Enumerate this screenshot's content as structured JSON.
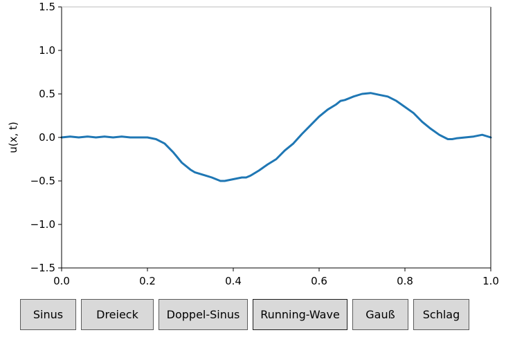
{
  "chart_data": {
    "type": "line",
    "xlabel": "x",
    "ylabel": "u(x, t)",
    "xlim": [
      0.0,
      1.0
    ],
    "ylim": [
      -1.5,
      1.5
    ],
    "xticks": [
      "0.0",
      "0.2",
      "0.4",
      "0.6",
      "0.8",
      "1.0"
    ],
    "yticks": [
      "1.5",
      "1.0",
      "0.5",
      "0.0",
      "−0.5",
      "−1.0",
      "−1.5"
    ],
    "line_color": "#1f77b4",
    "series": [
      {
        "x": [
          0.0,
          0.02,
          0.04,
          0.06,
          0.08,
          0.1,
          0.12,
          0.14,
          0.16,
          0.18,
          0.2,
          0.22,
          0.24,
          0.26,
          0.28,
          0.3,
          0.31,
          0.33,
          0.35,
          0.37,
          0.38,
          0.4,
          0.42,
          0.43,
          0.44,
          0.46,
          0.48,
          0.5,
          0.52,
          0.54,
          0.56,
          0.58,
          0.6,
          0.62,
          0.64,
          0.65,
          0.66,
          0.68,
          0.7,
          0.72,
          0.74,
          0.76,
          0.78,
          0.8,
          0.82,
          0.84,
          0.86,
          0.88,
          0.9,
          0.91,
          0.92,
          0.94,
          0.96,
          0.98,
          1.0
        ],
        "y": [
          0.0,
          0.01,
          0.0,
          0.01,
          0.0,
          0.01,
          0.0,
          0.01,
          0.0,
          0.0,
          0.0,
          -0.02,
          -0.07,
          -0.17,
          -0.29,
          -0.37,
          -0.4,
          -0.43,
          -0.46,
          -0.5,
          -0.5,
          -0.48,
          -0.46,
          -0.46,
          -0.44,
          -0.38,
          -0.31,
          -0.25,
          -0.15,
          -0.07,
          0.04,
          0.14,
          0.24,
          0.32,
          0.38,
          0.42,
          0.43,
          0.47,
          0.5,
          0.51,
          0.49,
          0.47,
          0.42,
          0.35,
          0.28,
          0.18,
          0.1,
          0.03,
          -0.02,
          -0.02,
          -0.01,
          0.0,
          0.01,
          0.03,
          0.0
        ]
      }
    ]
  },
  "buttons": [
    {
      "label": "Sinus"
    },
    {
      "label": "Dreieck"
    },
    {
      "label": "Doppel-Sinus"
    },
    {
      "label": "Running-Wave"
    },
    {
      "label": "Gauß"
    },
    {
      "label": "Schlag"
    }
  ]
}
